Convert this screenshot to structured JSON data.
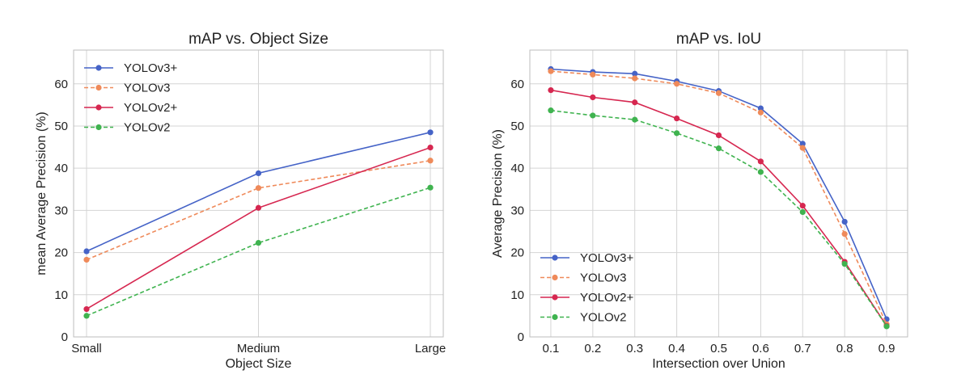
{
  "chart_data": [
    {
      "type": "line",
      "title": "mAP vs. Object Size",
      "xlabel": "Object Size",
      "ylabel": "mean Average Precision (%)",
      "categories": [
        "Small",
        "Medium",
        "Large"
      ],
      "ylim": [
        0,
        68
      ],
      "yticks": [
        0,
        10,
        20,
        30,
        40,
        50,
        60
      ],
      "grid": true,
      "legend_position": "top-left",
      "series": [
        {
          "name": "YOLOv3+",
          "values": [
            20.3,
            38.8,
            48.5
          ],
          "color": "#4563c7",
          "dash": "solid"
        },
        {
          "name": "YOLOv3",
          "values": [
            18.3,
            35.3,
            41.8
          ],
          "color": "#ef8a5a",
          "dash": "dashed"
        },
        {
          "name": "YOLOv2+",
          "values": [
            6.6,
            30.6,
            44.9
          ],
          "color": "#d62750",
          "dash": "solid"
        },
        {
          "name": "YOLOv2",
          "values": [
            5.0,
            22.3,
            35.4
          ],
          "color": "#3fb34f",
          "dash": "dashed"
        }
      ]
    },
    {
      "type": "line",
      "title": "mAP vs. IoU",
      "xlabel": "Intersection over Union",
      "ylabel": "Average Precision (%)",
      "x": [
        0.1,
        0.2,
        0.3,
        0.4,
        0.5,
        0.6,
        0.7,
        0.8,
        0.9
      ],
      "xtick_labels": [
        "0.1",
        "0.2",
        "0.3",
        "0.4",
        "0.5",
        "0.6",
        "0.7",
        "0.8",
        "0.9"
      ],
      "xlim": [
        0.05,
        0.95
      ],
      "ylim": [
        0,
        68
      ],
      "yticks": [
        0,
        10,
        20,
        30,
        40,
        50,
        60
      ],
      "grid": true,
      "legend_position": "bottom-left",
      "series": [
        {
          "name": "YOLOv3+",
          "values": [
            63.5,
            62.8,
            62.4,
            60.6,
            58.3,
            54.2,
            45.8,
            27.3,
            4.2
          ],
          "color": "#4563c7",
          "dash": "solid"
        },
        {
          "name": "YOLOv3",
          "values": [
            63.0,
            62.2,
            61.3,
            60.0,
            57.8,
            53.2,
            44.8,
            24.4,
            3.0
          ],
          "color": "#ef8a5a",
          "dash": "dashed"
        },
        {
          "name": "YOLOv2+",
          "values": [
            58.5,
            56.8,
            55.6,
            51.8,
            47.8,
            41.6,
            31.1,
            17.8,
            2.6
          ],
          "color": "#d62750",
          "dash": "solid"
        },
        {
          "name": "YOLOv2",
          "values": [
            53.7,
            52.5,
            51.5,
            48.3,
            44.7,
            39.1,
            29.6,
            17.3,
            2.5
          ],
          "color": "#3fb34f",
          "dash": "dashed"
        }
      ]
    }
  ]
}
